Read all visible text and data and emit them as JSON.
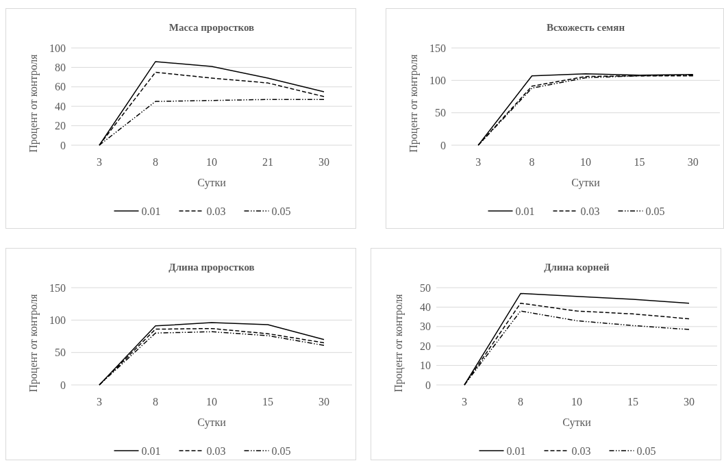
{
  "chart_data": [
    {
      "type": "line",
      "title": "Масса проростков",
      "xlabel": "Сутки",
      "ylabel": "Процент от контроля",
      "categories": [
        "3",
        "8",
        "10",
        "21",
        "30"
      ],
      "ylim": [
        0,
        100
      ],
      "yticks": [
        0,
        20,
        40,
        60,
        80,
        100
      ],
      "grid": "y",
      "legend": "bottom",
      "series": [
        {
          "name": "0.01",
          "color": "#000000",
          "line_style": "solid",
          "values": [
            0,
            86,
            81,
            69,
            55
          ]
        },
        {
          "name": "0.03",
          "color": "#000000",
          "line_style": "dashed",
          "values": [
            0,
            75,
            69,
            64,
            50
          ]
        },
        {
          "name": "0.05",
          "color": "#000000",
          "line_style": "dashdotdot",
          "values": [
            0,
            45,
            46,
            47,
            47
          ]
        }
      ]
    },
    {
      "type": "line",
      "title": "Всхожесть семян",
      "xlabel": "Сутки",
      "ylabel": "Процент от контроля",
      "categories": [
        "3",
        "8",
        "10",
        "15",
        "30"
      ],
      "ylim": [
        0,
        150
      ],
      "yticks": [
        0,
        50,
        100,
        150
      ],
      "grid": "y",
      "legend": "bottom",
      "series": [
        {
          "name": "0.01",
          "color": "#000000",
          "line_style": "solid",
          "values": [
            0,
            107,
            110,
            108,
            109
          ]
        },
        {
          "name": "0.03",
          "color": "#000000",
          "line_style": "dashed",
          "values": [
            0,
            91,
            106,
            107,
            107
          ]
        },
        {
          "name": "0.05",
          "color": "#000000",
          "line_style": "dashdotdot",
          "values": [
            0,
            88,
            104,
            107,
            108
          ]
        }
      ]
    },
    {
      "type": "line",
      "title": "Длина проростков",
      "xlabel": "Сутки",
      "ylabel": "Процент от контроля",
      "categories": [
        "3",
        "8",
        "10",
        "15",
        "30"
      ],
      "ylim": [
        0,
        150
      ],
      "yticks": [
        0,
        50,
        100,
        150
      ],
      "grid": "y",
      "legend": "bottom",
      "series": [
        {
          "name": "0.01",
          "color": "#000000",
          "line_style": "solid",
          "values": [
            0,
            91,
            96,
            93,
            70
          ]
        },
        {
          "name": "0.03",
          "color": "#000000",
          "line_style": "dashed",
          "values": [
            0,
            86,
            87,
            79,
            65
          ]
        },
        {
          "name": "0.05",
          "color": "#000000",
          "line_style": "dashdotdot",
          "values": [
            0,
            80,
            82,
            76,
            61
          ]
        }
      ]
    },
    {
      "type": "line",
      "title": "Длина корней",
      "xlabel": "Сутки",
      "ylabel": "Процент от контроля",
      "categories": [
        "3",
        "8",
        "10",
        "15",
        "30"
      ],
      "ylim": [
        0,
        50
      ],
      "yticks": [
        0,
        10,
        20,
        30,
        40,
        50
      ],
      "grid": "y",
      "legend": "bottom",
      "series": [
        {
          "name": "0.01",
          "color": "#000000",
          "line_style": "solid",
          "values": [
            0,
            47,
            45.5,
            44,
            42
          ]
        },
        {
          "name": "0.03",
          "color": "#000000",
          "line_style": "dashed",
          "values": [
            0,
            42,
            38,
            36.5,
            34
          ]
        },
        {
          "name": "0.05",
          "color": "#000000",
          "line_style": "dashdotdot",
          "values": [
            0,
            38,
            33,
            30.5,
            28.5
          ]
        }
      ]
    }
  ]
}
